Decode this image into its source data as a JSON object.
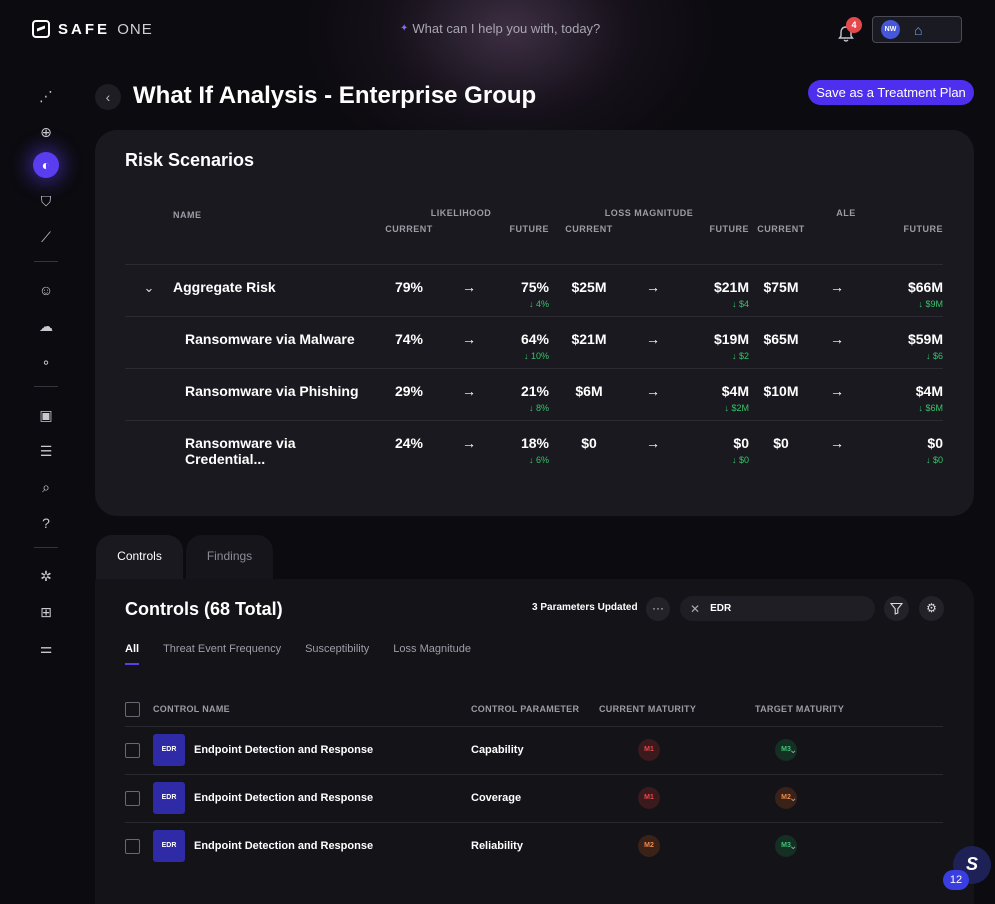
{
  "app": {
    "brand": "SAFE",
    "brand_suffix": "ONE",
    "assistant_prompt": "What can I help you with, today?",
    "notifications_count": "4",
    "user_initials": "NW"
  },
  "sidebar": {
    "items": [
      {
        "icon": "scatter-chart-icon"
      },
      {
        "icon": "target-icon"
      },
      {
        "icon": "toggle-circle-icon",
        "active": true
      },
      {
        "icon": "shield-check-icon"
      },
      {
        "icon": "line-chart-icon"
      },
      {
        "icon": "user-icon"
      },
      {
        "icon": "cloud-icon"
      },
      {
        "icon": "nodes-icon"
      },
      {
        "icon": "document-shield-icon"
      },
      {
        "icon": "list-icon"
      },
      {
        "icon": "search-shield-icon"
      },
      {
        "icon": "question-icon"
      },
      {
        "icon": "settings-badge-icon"
      },
      {
        "icon": "folder-add-icon"
      },
      {
        "icon": "sliders-icon"
      }
    ]
  },
  "header": {
    "title": "What If Analysis - Enterprise Group",
    "save_label": "Save as a Treatment Plan"
  },
  "risk": {
    "title": "Risk Scenarios",
    "headers": {
      "name": "NAME",
      "likelihood": "LIKELIHOOD",
      "loss": "LOSS MAGNITUDE",
      "ale": "ALE",
      "current": "CURRENT",
      "future": "FUTURE"
    },
    "rows": [
      {
        "name": "Aggregate Risk",
        "lc": "79%",
        "lf": "75%",
        "ld": "↓ 4%",
        "mc": "$25M",
        "mf": "$21M",
        "md": "↓ $4",
        "ac": "$75M",
        "af": "$66M",
        "ad": "↓ $9M"
      },
      {
        "name": "Ransomware via Malware",
        "lc": "74%",
        "lf": "64%",
        "ld": "↓ 10%",
        "mc": "$21M",
        "mf": "$19M",
        "md": "↓ $2",
        "ac": "$65M",
        "af": "$59M",
        "ad": "↓ $6"
      },
      {
        "name": "Ransomware via Phishing",
        "lc": "29%",
        "lf": "21%",
        "ld": "↓ 8%",
        "mc": "$6M",
        "mf": "$4M",
        "md": "↓ $2M",
        "ac": "$10M",
        "af": "$4M",
        "ad": "↓ $6M"
      },
      {
        "name": "Ransomware via Credential...",
        "lc": "24%",
        "lf": "18%",
        "ld": "↓ 6%",
        "mc": "$0",
        "mf": "$0",
        "md": "↓ $0",
        "ac": "$0",
        "af": "$0",
        "ad": "↓ $0"
      }
    ]
  },
  "tabs": {
    "controls": "Controls",
    "findings": "Findings"
  },
  "controls": {
    "title": "Controls (68 Total)",
    "params_updated": "3 Parameters Updated",
    "search_value": "EDR",
    "filters": [
      "All",
      "Threat Event Frequency",
      "Susceptibility",
      "Loss Magnitude"
    ],
    "headers": {
      "name": "CONTROL NAME",
      "param": "CONTROL PARAMETER",
      "current": "CURRENT MATURITY",
      "target": "TARGET MATURITY"
    },
    "rows": [
      {
        "badge": "EDR",
        "name": "Endpoint Detection and Response",
        "param": "Capability",
        "current": "M1",
        "target": "M3"
      },
      {
        "badge": "EDR",
        "name": "Endpoint Detection and Response",
        "param": "Coverage",
        "current": "M1",
        "target": "M2"
      },
      {
        "badge": "EDR",
        "name": "Endpoint Detection and Response",
        "param": "Reliability",
        "current": "M2",
        "target": "M3"
      }
    ]
  },
  "assistant_fab": {
    "count": "12"
  }
}
